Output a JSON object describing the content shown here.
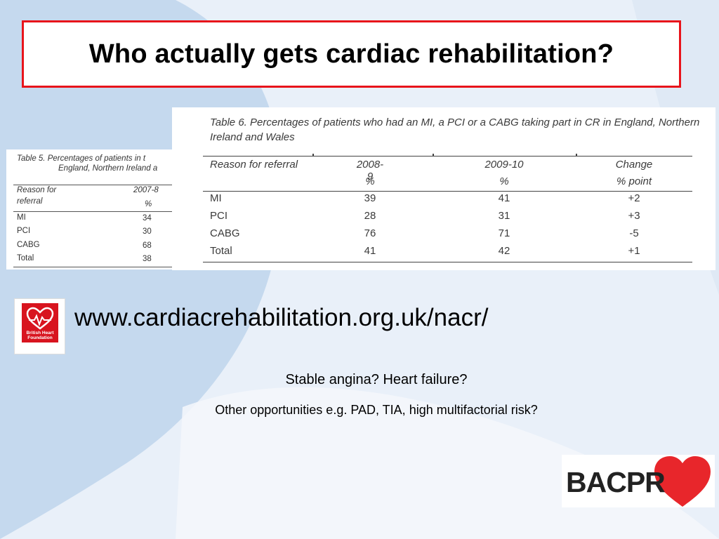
{
  "title": "Who actually gets cardiac rehabilitation?",
  "table5": {
    "caption_line1": "Table 5.  Percentages of patients in t",
    "caption_line2": "England, Northern Ireland a",
    "header_reason_1": "Reason for",
    "header_reason_2": "referral",
    "header_year": "2007-8",
    "header_unit": "%",
    "rows": [
      {
        "reason": "MI",
        "value": "34"
      },
      {
        "reason": "PCI",
        "value": "30"
      },
      {
        "reason": "CABG",
        "value": "68"
      },
      {
        "reason": "Total",
        "value": "38"
      }
    ]
  },
  "table6": {
    "caption": "Table 6. Percentages of patients who had an MI, a PCI or a CABG taking part in CR in England, Northern Ireland and Wales",
    "headers": [
      "Reason for referral",
      "2008-9",
      "2009-10",
      "Change"
    ],
    "subheaders": [
      "",
      "%",
      "%",
      "% point"
    ],
    "rows": [
      {
        "reason": "MI",
        "y2008": "39",
        "y2009": "41",
        "change": "+2"
      },
      {
        "reason": "PCI",
        "y2008": "28",
        "y2009": "31",
        "change": "+3"
      },
      {
        "reason": "CABG",
        "y2008": "76",
        "y2009": "71",
        "change": "-5"
      },
      {
        "reason": "Total",
        "y2008": "41",
        "y2009": "42",
        "change": "+1"
      }
    ]
  },
  "bhf_logo_text": "British Heart Foundation",
  "url": "www.cardiacrehabilitation.org.uk/nacr/",
  "question1": "Stable angina? Heart failure?",
  "question2": "Other opportunities e.g. PAD, TIA, high multifactorial risk?",
  "bacpr_logo_text": "BACPR",
  "colors": {
    "title_border": "#e8141b",
    "background": "#e9f0f9",
    "background_shape": "#c5d9ee",
    "bhf_red": "#d8141f",
    "bacpr_heart": "#e8262b"
  }
}
